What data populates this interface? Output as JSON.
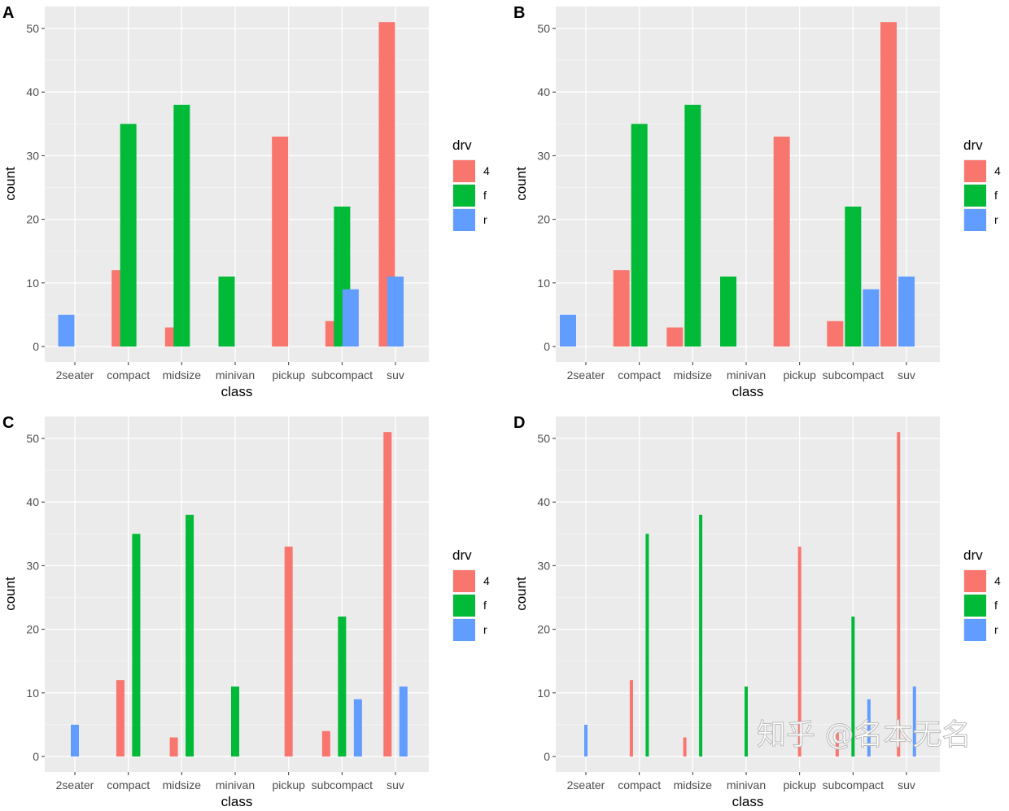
{
  "colors": {
    "4": "#F8766D",
    "f": "#00BA38",
    "r": "#619CFF",
    "panel_bg": "#EBEBEB",
    "grid": "#FFFFFF"
  },
  "watermark": "知乎 @名本无名",
  "chart_data": [
    {
      "panel": "A",
      "type": "bar",
      "position": "dodge (overlapping)",
      "xlabel": "class",
      "ylabel": "count",
      "ylim": [
        0,
        53
      ],
      "yticks": [
        0,
        10,
        20,
        30,
        40,
        50
      ],
      "grid": true,
      "legend": {
        "title": "drv",
        "entries": [
          "4",
          "f",
          "r"
        ],
        "placement": "right"
      },
      "categories": [
        "2seater",
        "compact",
        "midsize",
        "minivan",
        "pickup",
        "subcompact",
        "suv"
      ],
      "bars": [
        {
          "class": "2seater",
          "drv": "r",
          "count": 5
        },
        {
          "class": "compact",
          "drv": "4",
          "count": 12
        },
        {
          "class": "compact",
          "drv": "f",
          "count": 35
        },
        {
          "class": "midsize",
          "drv": "4",
          "count": 3
        },
        {
          "class": "midsize",
          "drv": "f",
          "count": 38
        },
        {
          "class": "minivan",
          "drv": "f",
          "count": 11
        },
        {
          "class": "pickup",
          "drv": "4",
          "count": 33
        },
        {
          "class": "subcompact",
          "drv": "4",
          "count": 4
        },
        {
          "class": "subcompact",
          "drv": "f",
          "count": 22
        },
        {
          "class": "subcompact",
          "drv": "r",
          "count": 9
        },
        {
          "class": "suv",
          "drv": "4",
          "count": 51
        },
        {
          "class": "suv",
          "drv": "r",
          "count": 11
        }
      ]
    },
    {
      "panel": "B",
      "type": "bar",
      "position": "dodge (preserve single)",
      "xlabel": "class",
      "ylabel": "count",
      "ylim": [
        0,
        53
      ],
      "yticks": [
        0,
        10,
        20,
        30,
        40,
        50
      ],
      "grid": true,
      "legend": {
        "title": "drv",
        "entries": [
          "4",
          "f",
          "r"
        ],
        "placement": "right"
      },
      "categories": [
        "2seater",
        "compact",
        "midsize",
        "minivan",
        "pickup",
        "subcompact",
        "suv"
      ],
      "bars": [
        {
          "class": "2seater",
          "drv": "r",
          "count": 5
        },
        {
          "class": "compact",
          "drv": "4",
          "count": 12
        },
        {
          "class": "compact",
          "drv": "f",
          "count": 35
        },
        {
          "class": "midsize",
          "drv": "4",
          "count": 3
        },
        {
          "class": "midsize",
          "drv": "f",
          "count": 38
        },
        {
          "class": "minivan",
          "drv": "f",
          "count": 11
        },
        {
          "class": "pickup",
          "drv": "4",
          "count": 33
        },
        {
          "class": "subcompact",
          "drv": "4",
          "count": 4
        },
        {
          "class": "subcompact",
          "drv": "f",
          "count": 22
        },
        {
          "class": "subcompact",
          "drv": "r",
          "count": 9
        },
        {
          "class": "suv",
          "drv": "4",
          "count": 51
        },
        {
          "class": "suv",
          "drv": "r",
          "count": 11
        }
      ]
    },
    {
      "panel": "C",
      "type": "bar",
      "position": "dodge2 (padded)",
      "xlabel": "class",
      "ylabel": "count",
      "ylim": [
        0,
        53
      ],
      "yticks": [
        0,
        10,
        20,
        30,
        40,
        50
      ],
      "grid": true,
      "legend": {
        "title": "drv",
        "entries": [
          "4",
          "f",
          "r"
        ],
        "placement": "right"
      },
      "categories": [
        "2seater",
        "compact",
        "midsize",
        "minivan",
        "pickup",
        "subcompact",
        "suv"
      ],
      "bars": [
        {
          "class": "2seater",
          "drv": "r",
          "count": 5
        },
        {
          "class": "compact",
          "drv": "4",
          "count": 12
        },
        {
          "class": "compact",
          "drv": "f",
          "count": 35
        },
        {
          "class": "midsize",
          "drv": "4",
          "count": 3
        },
        {
          "class": "midsize",
          "drv": "f",
          "count": 38
        },
        {
          "class": "minivan",
          "drv": "f",
          "count": 11
        },
        {
          "class": "pickup",
          "drv": "4",
          "count": 33
        },
        {
          "class": "subcompact",
          "drv": "4",
          "count": 4
        },
        {
          "class": "subcompact",
          "drv": "f",
          "count": 22
        },
        {
          "class": "subcompact",
          "drv": "r",
          "count": 9
        },
        {
          "class": "suv",
          "drv": "4",
          "count": 51
        },
        {
          "class": "suv",
          "drv": "r",
          "count": 11
        }
      ]
    },
    {
      "panel": "D",
      "type": "bar",
      "position": "dodge2 (heavy padding)",
      "xlabel": "class",
      "ylabel": "count",
      "ylim": [
        0,
        53
      ],
      "yticks": [
        0,
        10,
        20,
        30,
        40,
        50
      ],
      "grid": true,
      "legend": {
        "title": "drv",
        "entries": [
          "4",
          "f",
          "r"
        ],
        "placement": "right"
      },
      "categories": [
        "2seater",
        "compact",
        "midsize",
        "minivan",
        "pickup",
        "subcompact",
        "suv"
      ],
      "bars": [
        {
          "class": "2seater",
          "drv": "r",
          "count": 5
        },
        {
          "class": "compact",
          "drv": "4",
          "count": 12
        },
        {
          "class": "compact",
          "drv": "f",
          "count": 35
        },
        {
          "class": "midsize",
          "drv": "4",
          "count": 3
        },
        {
          "class": "midsize",
          "drv": "f",
          "count": 38
        },
        {
          "class": "minivan",
          "drv": "f",
          "count": 11
        },
        {
          "class": "pickup",
          "drv": "4",
          "count": 33
        },
        {
          "class": "subcompact",
          "drv": "4",
          "count": 4
        },
        {
          "class": "subcompact",
          "drv": "f",
          "count": 22
        },
        {
          "class": "subcompact",
          "drv": "r",
          "count": 9
        },
        {
          "class": "suv",
          "drv": "4",
          "count": 51
        },
        {
          "class": "suv",
          "drv": "r",
          "count": 11
        }
      ]
    }
  ]
}
